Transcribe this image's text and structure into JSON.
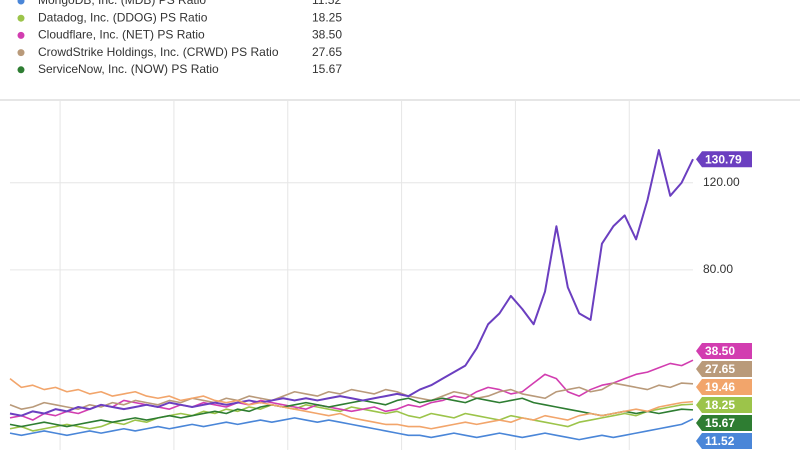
{
  "chart_data": {
    "type": "line",
    "xlim": [
      0,
      60
    ],
    "xticks": [
      4.4,
      14.4,
      24.4,
      34.4,
      44.4,
      54.4
    ],
    "ylim": [
      -2.76,
      158
    ],
    "yticks": [
      {
        "value": 80,
        "label": "80.00"
      },
      {
        "value": 120,
        "label": "120.00"
      }
    ],
    "grid": true,
    "series": [
      {
        "name": "MongoDB, Inc. (MDB) PS Ratio",
        "color": "#4a86d8",
        "latest": 11.52,
        "latest_label": "11.52",
        "values": [
          5,
          4,
          5,
          6,
          5,
          4,
          5,
          6,
          5,
          6,
          7,
          6,
          7,
          8,
          7,
          8,
          9,
          8,
          9,
          10,
          9,
          10,
          11,
          10,
          11,
          12,
          11,
          10,
          11,
          10,
          9,
          8,
          7,
          6,
          5,
          4,
          4,
          3,
          4,
          5,
          4,
          3,
          4,
          5,
          4,
          3,
          4,
          5,
          4,
          3,
          2,
          3,
          4,
          3,
          4,
          5,
          6,
          7,
          8,
          9,
          11.52
        ]
      },
      {
        "name": "Datadog, Inc. (DDOG) PS Ratio",
        "color": "#9cc44a",
        "latest": 18.25,
        "latest_label": "18.25",
        "values": [
          7,
          8,
          6,
          7,
          8,
          9,
          8,
          7,
          8,
          10,
          9,
          11,
          10,
          12,
          13,
          14,
          13,
          15,
          14,
          16,
          15,
          17,
          16,
          18,
          17,
          16,
          18,
          17,
          16,
          15,
          17,
          16,
          15,
          14,
          15,
          13,
          12,
          14,
          13,
          12,
          14,
          13,
          12,
          11,
          13,
          12,
          11,
          10,
          9,
          8,
          10,
          11,
          12,
          13,
          14,
          13,
          15,
          16,
          17,
          18,
          18.25
        ]
      },
      {
        "name": "Cloudflare, Inc. (NET) PS Ratio",
        "color": "#d23db0",
        "latest": 38.5,
        "latest_label": "38.50",
        "values": [
          12,
          13,
          11,
          14,
          13,
          15,
          14,
          16,
          18,
          17,
          20,
          19,
          18,
          17,
          16,
          18,
          17,
          19,
          18,
          17,
          19,
          18,
          20,
          19,
          18,
          17,
          16,
          18,
          17,
          16,
          15,
          16,
          17,
          15,
          16,
          18,
          17,
          19,
          20,
          22,
          21,
          24,
          26,
          25,
          23,
          24,
          28,
          32,
          30,
          24,
          22,
          25,
          27,
          28,
          30,
          32,
          33,
          35,
          37,
          36,
          38.5
        ]
      },
      {
        "name": "CrowdStrike Holdings, Inc. (CRWD) PS Ratio",
        "color": "#b99a7a",
        "latest": 27.65,
        "latest_label": "27.65",
        "values": [
          18,
          16,
          17,
          19,
          18,
          17,
          16,
          18,
          17,
          19,
          18,
          20,
          19,
          18,
          20,
          19,
          21,
          20,
          19,
          21,
          20,
          22,
          21,
          20,
          22,
          24,
          23,
          22,
          24,
          23,
          25,
          24,
          23,
          25,
          24,
          22,
          21,
          20,
          22,
          24,
          23,
          21,
          22,
          24,
          25,
          23,
          22,
          21,
          24,
          25,
          26,
          24,
          25,
          28,
          27,
          26,
          25,
          27,
          26,
          28,
          27.65
        ]
      },
      {
        "name": "ServiceNow, Inc. (NOW) PS Ratio",
        "color": "#2e7d32",
        "latest": 15.67,
        "latest_label": "15.67",
        "values": [
          9,
          8,
          9,
          10,
          9,
          8,
          9,
          10,
          11,
          10,
          11,
          12,
          11,
          12,
          13,
          12,
          13,
          14,
          15,
          14,
          16,
          15,
          17,
          18,
          17,
          18,
          19,
          18,
          17,
          18,
          19,
          20,
          19,
          18,
          20,
          21,
          19,
          20,
          21,
          20,
          19,
          21,
          20,
          19,
          20,
          21,
          19,
          18,
          17,
          16,
          15,
          14,
          13,
          14,
          15,
          14,
          15,
          14,
          15,
          16,
          15.67
        ]
      },
      {
        "color": "#6b3fc0",
        "latest": 130.79,
        "latest_label": "130.79",
        "values": [
          14,
          13,
          15,
          14,
          16,
          15,
          17,
          16,
          18,
          17,
          16,
          17,
          18,
          17,
          19,
          18,
          17,
          18,
          19,
          18,
          19,
          20,
          19,
          20,
          21,
          20,
          21,
          20,
          21,
          22,
          21,
          20,
          21,
          22,
          23,
          22,
          25,
          27,
          30,
          33,
          36,
          44,
          55,
          60,
          68,
          62,
          55,
          70,
          100,
          72,
          60,
          57,
          92,
          100,
          105,
          94,
          112,
          135,
          114,
          120,
          130.79
        ]
      },
      {
        "color": "#f2a56b",
        "latest": 19.46,
        "latest_label": "19.46",
        "values": [
          30,
          26,
          27,
          25,
          26,
          24,
          25,
          23,
          24,
          22,
          23,
          24,
          22,
          21,
          22,
          20,
          21,
          22,
          20,
          19,
          20,
          18,
          19,
          18,
          17,
          16,
          15,
          14,
          13,
          14,
          12,
          11,
          10,
          9,
          9,
          8,
          8,
          7,
          8,
          9,
          10,
          9,
          10,
          11,
          10,
          12,
          11,
          13,
          12,
          11,
          13,
          14,
          13,
          14,
          15,
          16,
          15,
          17,
          18,
          19,
          19.46
        ]
      }
    ]
  }
}
